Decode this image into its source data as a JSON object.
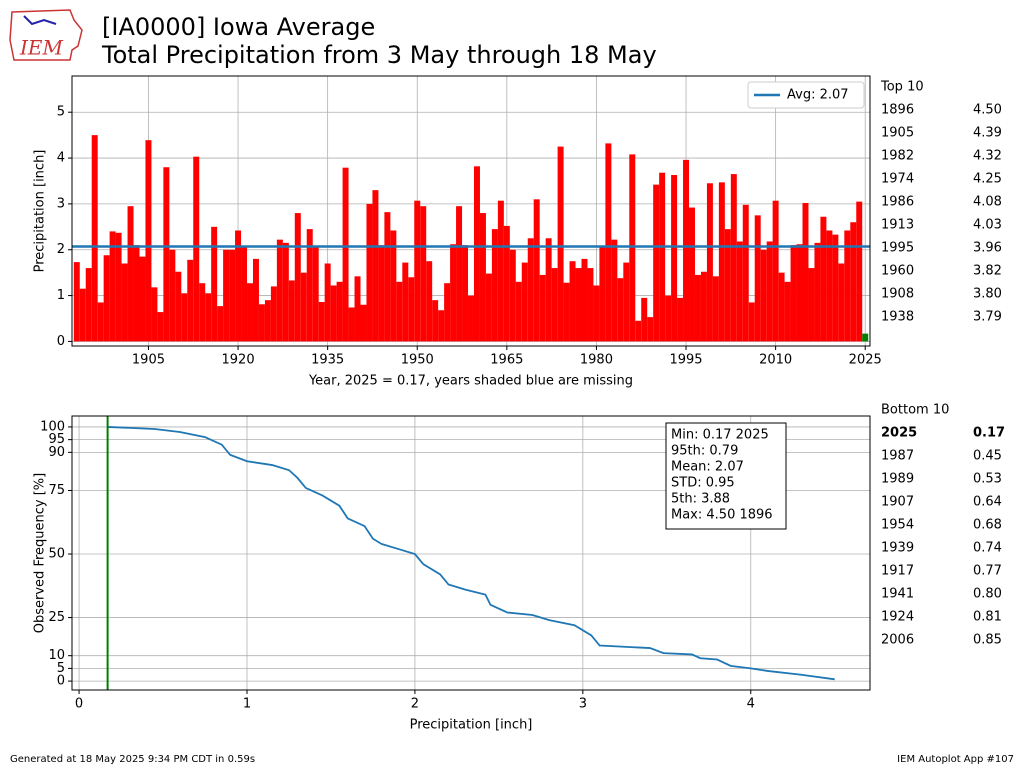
{
  "header": {
    "title_line1": "[IA0000] Iowa Average",
    "title_line2": "Total Precipitation from 3 May through 18 May",
    "logo": "IEM"
  },
  "chart_data": [
    {
      "type": "bar",
      "ylabel": "Precipitation [inch]",
      "xlabel": "Year, 2025 = 0.17, years shaded blue are missing",
      "color": "red",
      "highlight_x": 2025,
      "highlight_color": "green",
      "x": [
        1893,
        1894,
        1895,
        1896,
        1897,
        1898,
        1899,
        1900,
        1901,
        1902,
        1903,
        1904,
        1905,
        1906,
        1907,
        1908,
        1909,
        1910,
        1911,
        1912,
        1913,
        1914,
        1915,
        1916,
        1917,
        1918,
        1919,
        1920,
        1921,
        1922,
        1923,
        1924,
        1925,
        1926,
        1927,
        1928,
        1929,
        1930,
        1931,
        1932,
        1933,
        1934,
        1935,
        1936,
        1937,
        1938,
        1939,
        1940,
        1941,
        1942,
        1943,
        1944,
        1945,
        1946,
        1947,
        1948,
        1949,
        1950,
        1951,
        1952,
        1953,
        1954,
        1955,
        1956,
        1957,
        1958,
        1959,
        1960,
        1961,
        1962,
        1963,
        1964,
        1965,
        1966,
        1967,
        1968,
        1969,
        1970,
        1971,
        1972,
        1973,
        1974,
        1975,
        1976,
        1977,
        1978,
        1979,
        1980,
        1981,
        1982,
        1983,
        1984,
        1985,
        1986,
        1987,
        1988,
        1989,
        1990,
        1991,
        1992,
        1993,
        1994,
        1995,
        1996,
        1997,
        1998,
        1999,
        2000,
        2001,
        2002,
        2003,
        2004,
        2005,
        2006,
        2007,
        2008,
        2009,
        2010,
        2011,
        2012,
        2013,
        2014,
        2015,
        2016,
        2017,
        2018,
        2019,
        2020,
        2021,
        2022,
        2023,
        2024,
        2025
      ],
      "values": [
        1.73,
        1.15,
        1.6,
        4.5,
        0.85,
        1.88,
        2.4,
        2.37,
        1.7,
        2.95,
        2.1,
        1.85,
        4.39,
        1.18,
        0.64,
        3.8,
        2.0,
        1.52,
        1.05,
        1.78,
        4.03,
        1.27,
        1.05,
        2.5,
        0.77,
        2.0,
        2.0,
        2.42,
        2.05,
        1.27,
        1.8,
        0.81,
        0.9,
        1.2,
        2.22,
        2.15,
        1.33,
        2.8,
        1.5,
        2.45,
        2.05,
        0.86,
        1.7,
        1.22,
        1.3,
        3.79,
        0.74,
        1.42,
        0.8,
        3.0,
        3.3,
        2.1,
        2.82,
        2.42,
        1.3,
        1.72,
        1.4,
        3.07,
        2.95,
        1.75,
        0.9,
        0.68,
        1.27,
        2.12,
        2.95,
        2.1,
        1.0,
        3.82,
        2.8,
        1.48,
        2.45,
        3.07,
        2.52,
        2.0,
        1.3,
        1.72,
        2.25,
        3.1,
        1.45,
        2.25,
        1.6,
        4.25,
        1.28,
        1.75,
        1.6,
        1.8,
        1.6,
        1.22,
        2.05,
        4.32,
        2.22,
        1.38,
        1.72,
        4.08,
        0.45,
        0.95,
        0.53,
        3.42,
        3.68,
        1.0,
        3.63,
        0.95,
        3.96,
        2.92,
        1.45,
        1.52,
        3.45,
        1.42,
        3.47,
        2.45,
        3.65,
        2.18,
        2.98,
        0.85,
        2.75,
        2.0,
        2.18,
        3.07,
        1.5,
        1.3,
        2.1,
        2.12,
        3.02,
        1.6,
        2.15,
        2.72,
        2.42,
        2.33,
        1.7,
        2.42,
        2.6,
        3.05,
        0.17
      ],
      "avg_line": {
        "value": 2.07,
        "label": "Avg: 2.07",
        "color": "#1f77b4"
      },
      "xlim": [
        1892.2,
        2025.8
      ],
      "xticks": [
        1905,
        1920,
        1935,
        1950,
        1965,
        1980,
        1995,
        2010,
        2025
      ],
      "ylim": [
        -0.1,
        5.79
      ],
      "yticks": [
        0,
        1,
        2,
        3,
        4,
        5
      ],
      "grid": true,
      "legend": "upper right"
    },
    {
      "type": "line",
      "ylabel": "Observed Frequency [%]",
      "xlabel": "Precipitation [inch]",
      "series": [
        {
          "color": "#1f77b4",
          "x": [
            0.17,
            0.45,
            0.6,
            0.75,
            0.85,
            0.9,
            1.0,
            1.15,
            1.25,
            1.3,
            1.35,
            1.45,
            1.55,
            1.6,
            1.7,
            1.75,
            1.8,
            1.9,
            2.0,
            2.05,
            2.15,
            2.2,
            2.3,
            2.42,
            2.45,
            2.55,
            2.7,
            2.8,
            2.95,
            3.05,
            3.1,
            3.4,
            3.48,
            3.65,
            3.7,
            3.8,
            3.88,
            4.0,
            4.1,
            4.3,
            4.5
          ],
          "values": [
            100,
            99.2,
            98,
            96,
            93,
            89,
            86.5,
            85,
            83,
            80,
            76,
            73,
            69,
            64,
            61,
            56,
            54,
            52,
            50,
            46,
            42,
            38,
            36,
            34,
            30,
            27,
            26,
            24,
            22,
            18,
            14,
            13,
            11,
            10.5,
            9,
            8.5,
            6,
            5,
            4,
            2.5,
            0.7
          ]
        }
      ],
      "vline": {
        "x": 0.17,
        "color": "green"
      },
      "stats": [
        "Min: 0.17 2025",
        "95th: 0.79",
        "Mean: 2.07",
        "STD: 0.95",
        "5th: 3.88",
        "Max: 4.50 1896"
      ],
      "xlim": [
        -0.042,
        4.71
      ],
      "xticks": [
        0,
        1,
        2,
        3,
        4
      ],
      "ylim": [
        -3.5,
        104.3
      ],
      "yticks": [
        0,
        5,
        10,
        25,
        50,
        75,
        90,
        95,
        100
      ],
      "grid": true
    }
  ],
  "tables": [
    {
      "title": "Top 10",
      "rows": [
        [
          "1896",
          "4.50"
        ],
        [
          "1905",
          "4.39"
        ],
        [
          "1982",
          "4.32"
        ],
        [
          "1974",
          "4.25"
        ],
        [
          "1986",
          "4.08"
        ],
        [
          "1913",
          "4.03"
        ],
        [
          "1995",
          "3.96"
        ],
        [
          "1960",
          "3.82"
        ],
        [
          "1908",
          "3.80"
        ],
        [
          "1938",
          "3.79"
        ]
      ]
    },
    {
      "title": "Bottom 10",
      "rows": [
        [
          "2025",
          "0.17"
        ],
        [
          "1987",
          "0.45"
        ],
        [
          "1989",
          "0.53"
        ],
        [
          "1907",
          "0.64"
        ],
        [
          "1954",
          "0.68"
        ],
        [
          "1939",
          "0.74"
        ],
        [
          "1917",
          "0.77"
        ],
        [
          "1941",
          "0.80"
        ],
        [
          "1924",
          "0.81"
        ],
        [
          "2006",
          "0.85"
        ]
      ]
    }
  ],
  "footer": {
    "left": "Generated at 18 May 2025 9:34 PM CDT in 0.59s",
    "right": "IEM Autoplot App #107"
  }
}
